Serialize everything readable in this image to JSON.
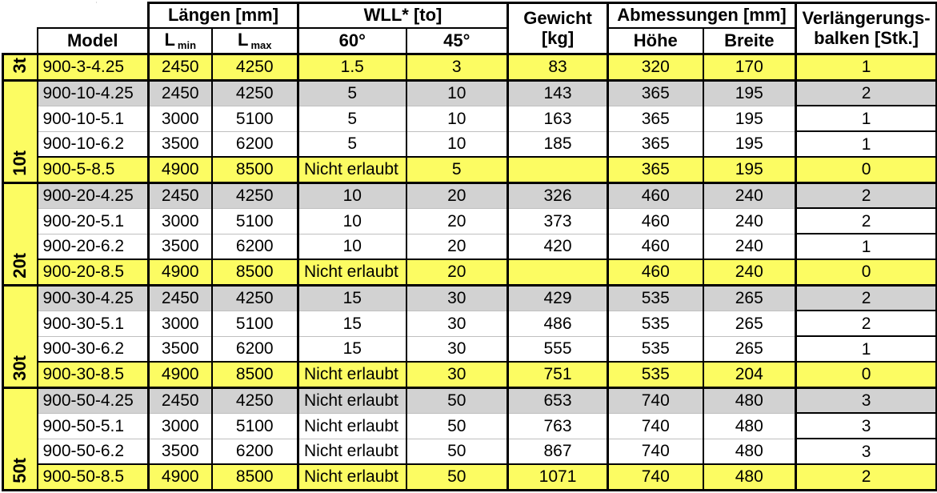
{
  "table": {
    "header": {
      "laengen": "Längen [mm]",
      "wll": "WLL* [to]",
      "gewicht_line1": "Gewicht",
      "gewicht_line2": "[kg]",
      "abmessungen": "Abmessungen [mm]",
      "verlaengerung_line1": "Verlängerungs-",
      "verlaengerung_line2": "balken [Stk.]",
      "model": "Model",
      "l_min_main": "L",
      "l_min_sub": "min",
      "l_max_main": "L",
      "l_max_sub": "max",
      "deg60": "60°",
      "deg45": "45°",
      "hoehe": "Höhe",
      "breite": "Breite"
    },
    "colors": {
      "row_highlight_yellow": "#fcfc62",
      "row_highlight_gray": "#d2d2d2",
      "border_black": "#000000",
      "gridline_gray": "#bfbfbf"
    },
    "groups": [
      {
        "label": "3t",
        "rows": [
          {
            "model": "900-3-4.25",
            "l_min": "2450",
            "l_max": "4250",
            "wll_60": "1.5",
            "wll_45": "3",
            "gewicht": "83",
            "hoehe": "320",
            "breite": "170",
            "verlaengerungsbalken": "1",
            "highlight": "yellow"
          }
        ]
      },
      {
        "label": "10t",
        "rows": [
          {
            "model": "900-10-4.25",
            "l_min": "2450",
            "l_max": "4250",
            "wll_60": "5",
            "wll_45": "10",
            "gewicht": "143",
            "hoehe": "365",
            "breite": "195",
            "verlaengerungsbalken": "2",
            "highlight": "gray"
          },
          {
            "model": "900-10-5.1",
            "l_min": "3000",
            "l_max": "5100",
            "wll_60": "5",
            "wll_45": "10",
            "gewicht": "163",
            "hoehe": "365",
            "breite": "195",
            "verlaengerungsbalken": "1",
            "highlight": "white"
          },
          {
            "model": "900-10-6.2",
            "l_min": "3500",
            "l_max": "6200",
            "wll_60": "5",
            "wll_45": "10",
            "gewicht": "185",
            "hoehe": "365",
            "breite": "195",
            "verlaengerungsbalken": "1",
            "highlight": "white"
          },
          {
            "model": "900-5-8.5",
            "l_min": "4900",
            "l_max": "8500",
            "wll_60": "Nicht erlaubt",
            "wll_45": "5",
            "gewicht": "",
            "hoehe": "365",
            "breite": "195",
            "verlaengerungsbalken": "0",
            "highlight": "yellow"
          }
        ]
      },
      {
        "label": "20t",
        "rows": [
          {
            "model": "900-20-4.25",
            "l_min": "2450",
            "l_max": "4250",
            "wll_60": "10",
            "wll_45": "20",
            "gewicht": "326",
            "hoehe": "460",
            "breite": "240",
            "verlaengerungsbalken": "2",
            "highlight": "gray"
          },
          {
            "model": "900-20-5.1",
            "l_min": "3000",
            "l_max": "5100",
            "wll_60": "10",
            "wll_45": "20",
            "gewicht": "373",
            "hoehe": "460",
            "breite": "240",
            "verlaengerungsbalken": "2",
            "highlight": "white"
          },
          {
            "model": "900-20-6.2",
            "l_min": "3500",
            "l_max": "6200",
            "wll_60": "10",
            "wll_45": "20",
            "gewicht": "420",
            "hoehe": "460",
            "breite": "240",
            "verlaengerungsbalken": "1",
            "highlight": "white"
          },
          {
            "model": "900-20-8.5",
            "l_min": "4900",
            "l_max": "8500",
            "wll_60": "Nicht erlaubt",
            "wll_45": "20",
            "gewicht": "",
            "hoehe": "460",
            "breite": "240",
            "verlaengerungsbalken": "0",
            "highlight": "yellow"
          }
        ]
      },
      {
        "label": "30t",
        "rows": [
          {
            "model": "900-30-4.25",
            "l_min": "2450",
            "l_max": "4250",
            "wll_60": "15",
            "wll_45": "30",
            "gewicht": "429",
            "hoehe": "535",
            "breite": "265",
            "verlaengerungsbalken": "2",
            "highlight": "gray"
          },
          {
            "model": "900-30-5.1",
            "l_min": "3000",
            "l_max": "5100",
            "wll_60": "15",
            "wll_45": "30",
            "gewicht": "486",
            "hoehe": "535",
            "breite": "265",
            "verlaengerungsbalken": "2",
            "highlight": "white"
          },
          {
            "model": "900-30-6.2",
            "l_min": "3500",
            "l_max": "6200",
            "wll_60": "15",
            "wll_45": "30",
            "gewicht": "555",
            "hoehe": "535",
            "breite": "265",
            "verlaengerungsbalken": "1",
            "highlight": "white"
          },
          {
            "model": "900-30-8.5",
            "l_min": "4900",
            "l_max": "8500",
            "wll_60": "Nicht erlaubt",
            "wll_45": "30",
            "gewicht": "751",
            "hoehe": "535",
            "breite": "204",
            "verlaengerungsbalken": "0",
            "highlight": "yellow"
          }
        ]
      },
      {
        "label": "50t",
        "rows": [
          {
            "model": "900-50-4.25",
            "l_min": "2450",
            "l_max": "4250",
            "wll_60": "Nicht erlaubt",
            "wll_45": "50",
            "gewicht": "653",
            "hoehe": "740",
            "breite": "480",
            "verlaengerungsbalken": "3",
            "highlight": "gray"
          },
          {
            "model": "900-50-5.1",
            "l_min": "3000",
            "l_max": "5100",
            "wll_60": "Nicht erlaubt",
            "wll_45": "50",
            "gewicht": "763",
            "hoehe": "740",
            "breite": "480",
            "verlaengerungsbalken": "3",
            "highlight": "white"
          },
          {
            "model": "900-50-6.2",
            "l_min": "3500",
            "l_max": "6200",
            "wll_60": "Nicht erlaubt",
            "wll_45": "50",
            "gewicht": "867",
            "hoehe": "740",
            "breite": "480",
            "verlaengerungsbalken": "3",
            "highlight": "white"
          },
          {
            "model": "900-50-8.5",
            "l_min": "4900",
            "l_max": "8500",
            "wll_60": "Nicht erlaubt",
            "wll_45": "50",
            "gewicht": "1071",
            "hoehe": "740",
            "breite": "480",
            "verlaengerungsbalken": "2",
            "highlight": "yellow"
          }
        ]
      }
    ]
  }
}
